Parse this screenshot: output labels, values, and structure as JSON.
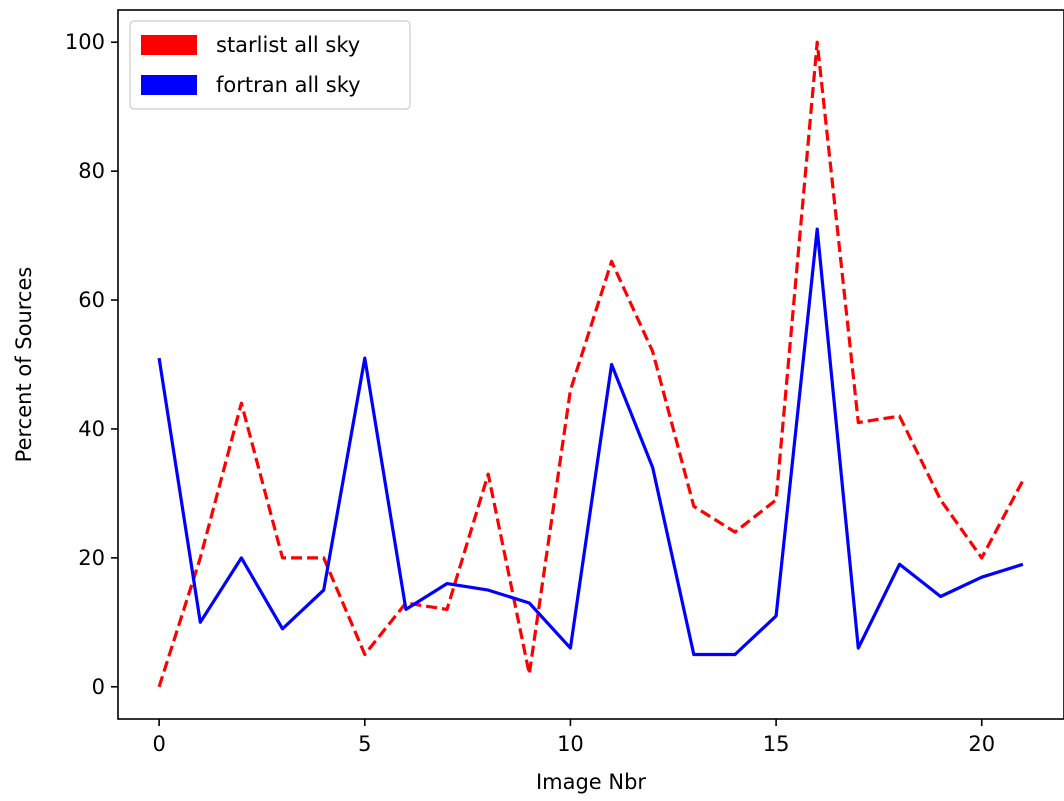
{
  "chart_data": {
    "type": "line",
    "xlabel": "Image Nbr",
    "ylabel": "Percent of Sources",
    "xlim": [
      -1,
      22
    ],
    "ylim": [
      -5,
      105
    ],
    "xticks": [
      0,
      5,
      10,
      15,
      20
    ],
    "yticks": [
      0,
      20,
      40,
      60,
      80,
      100
    ],
    "grid": false,
    "legend_position": "top-left",
    "x": [
      0,
      1,
      2,
      3,
      4,
      5,
      6,
      7,
      8,
      9,
      10,
      11,
      12,
      13,
      14,
      15,
      16,
      17,
      18,
      19,
      20,
      21
    ],
    "series": [
      {
        "name": "starlist all sky",
        "color": "#ff0000",
        "style": "dashed",
        "values": [
          0,
          20,
          44,
          20,
          20,
          5,
          13,
          12,
          33,
          2,
          46,
          66,
          52,
          28,
          24,
          29,
          100,
          41,
          42,
          29,
          20,
          32
        ]
      },
      {
        "name": "fortran all sky",
        "color": "#0000ff",
        "style": "solid",
        "values": [
          51,
          10,
          20,
          9,
          15,
          51,
          12,
          16,
          15,
          13,
          6,
          50,
          34,
          5,
          5,
          11,
          71,
          6,
          19,
          14,
          17,
          19
        ]
      }
    ]
  }
}
